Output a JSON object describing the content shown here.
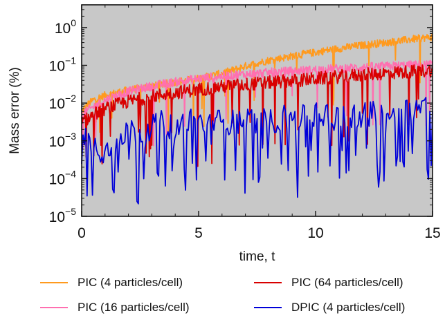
{
  "chart_data": {
    "type": "line",
    "title": "",
    "xlabel": "time, t",
    "ylabel": "Mass error (%)",
    "xlim": [
      0,
      15
    ],
    "ylim": [
      1e-05,
      4
    ],
    "yscale": "log",
    "xticks": [
      "0",
      "5",
      "10",
      "15"
    ],
    "yticks": [
      {
        "base": "10",
        "exp": "0"
      },
      {
        "base": "10",
        "exp": "−1"
      },
      {
        "base": "10",
        "exp": "−2"
      },
      {
        "base": "10",
        "exp": "−3"
      },
      {
        "base": "10",
        "exp": "−4"
      },
      {
        "base": "10",
        "exp": "−5"
      }
    ],
    "plot_background": "#c8c8c8",
    "grid": false,
    "legend_position": "bottom",
    "series": [
      {
        "name": "PIC (4 particles/cell)",
        "color": "#ff9a1e",
        "x": [
          0,
          0.25,
          0.5,
          0.75,
          1,
          1.5,
          2,
          2.5,
          3,
          3.5,
          4,
          4.5,
          5,
          5.5,
          6,
          6.5,
          7,
          7.5,
          8,
          8.5,
          9,
          9.5,
          10,
          10.5,
          11,
          11.5,
          12,
          12.5,
          13,
          13.5,
          14,
          14.5,
          15
        ],
        "values": [
          0.006,
          0.009,
          0.012,
          0.014,
          0.016,
          0.019,
          0.022,
          0.025,
          0.028,
          0.032,
          0.036,
          0.04,
          0.045,
          0.052,
          0.062,
          0.075,
          0.095,
          0.115,
          0.135,
          0.155,
          0.175,
          0.2,
          0.22,
          0.25,
          0.28,
          0.31,
          0.34,
          0.37,
          0.4,
          0.44,
          0.48,
          0.52,
          0.56
        ]
      },
      {
        "name": "PIC (16 particles/cell)",
        "color": "#ff6fb0",
        "x": [
          0,
          0.5,
          1,
          1.5,
          2,
          2.5,
          3,
          3.5,
          4,
          4.5,
          5,
          5.5,
          6,
          6.5,
          7,
          7.5,
          8,
          8.5,
          9,
          9.5,
          10,
          10.5,
          11,
          11.5,
          12,
          12.5,
          13,
          13.5,
          14,
          14.5,
          15
        ],
        "values": [
          0.005,
          0.008,
          0.012,
          0.016,
          0.02,
          0.024,
          0.028,
          0.032,
          0.036,
          0.04,
          0.044,
          0.048,
          0.052,
          0.055,
          0.058,
          0.061,
          0.064,
          0.067,
          0.07,
          0.073,
          0.076,
          0.079,
          0.082,
          0.085,
          0.088,
          0.091,
          0.094,
          0.097,
          0.1,
          0.103,
          0.106
        ]
      },
      {
        "name": "PIC (64 particles/cell)",
        "color": "#d80000",
        "x": [
          0,
          0.5,
          1,
          1.5,
          2,
          2.5,
          3,
          3.5,
          4,
          4.5,
          5,
          5.5,
          6,
          6.5,
          7,
          7.5,
          8,
          8.5,
          9,
          9.5,
          10,
          10.5,
          11,
          11.5,
          12,
          12.5,
          13,
          13.5,
          14,
          14.5,
          15
        ],
        "values": [
          0.003,
          0.005,
          0.007,
          0.009,
          0.011,
          0.013,
          0.015,
          0.017,
          0.019,
          0.021,
          0.023,
          0.025,
          0.027,
          0.029,
          0.031,
          0.033,
          0.035,
          0.037,
          0.039,
          0.041,
          0.044,
          0.047,
          0.05,
          0.053,
          0.056,
          0.059,
          0.062,
          0.065,
          0.068,
          0.071,
          0.074
        ]
      },
      {
        "name": "DPIC (4 particles/cell)",
        "color": "#0000d8",
        "x": [
          0,
          0.5,
          1,
          1.5,
          2,
          2.5,
          3,
          3.5,
          4,
          4.5,
          5,
          5.5,
          6,
          6.5,
          7,
          7.5,
          8,
          8.5,
          9,
          9.5,
          10,
          10.5,
          11,
          11.5,
          12,
          12.5,
          13,
          13.5,
          14,
          14.5,
          15
        ],
        "values": [
          0.002,
          0.0008,
          0.0005,
          0.0012,
          0.002,
          0.0015,
          0.0025,
          0.003,
          0.002,
          0.0035,
          0.003,
          0.0025,
          0.0035,
          0.003,
          0.004,
          0.0035,
          0.003,
          0.004,
          0.0045,
          0.004,
          0.005,
          0.0045,
          0.004,
          0.005,
          0.0045,
          0.0055,
          0.005,
          0.006,
          0.007,
          0.008,
          0.009
        ]
      }
    ]
  }
}
